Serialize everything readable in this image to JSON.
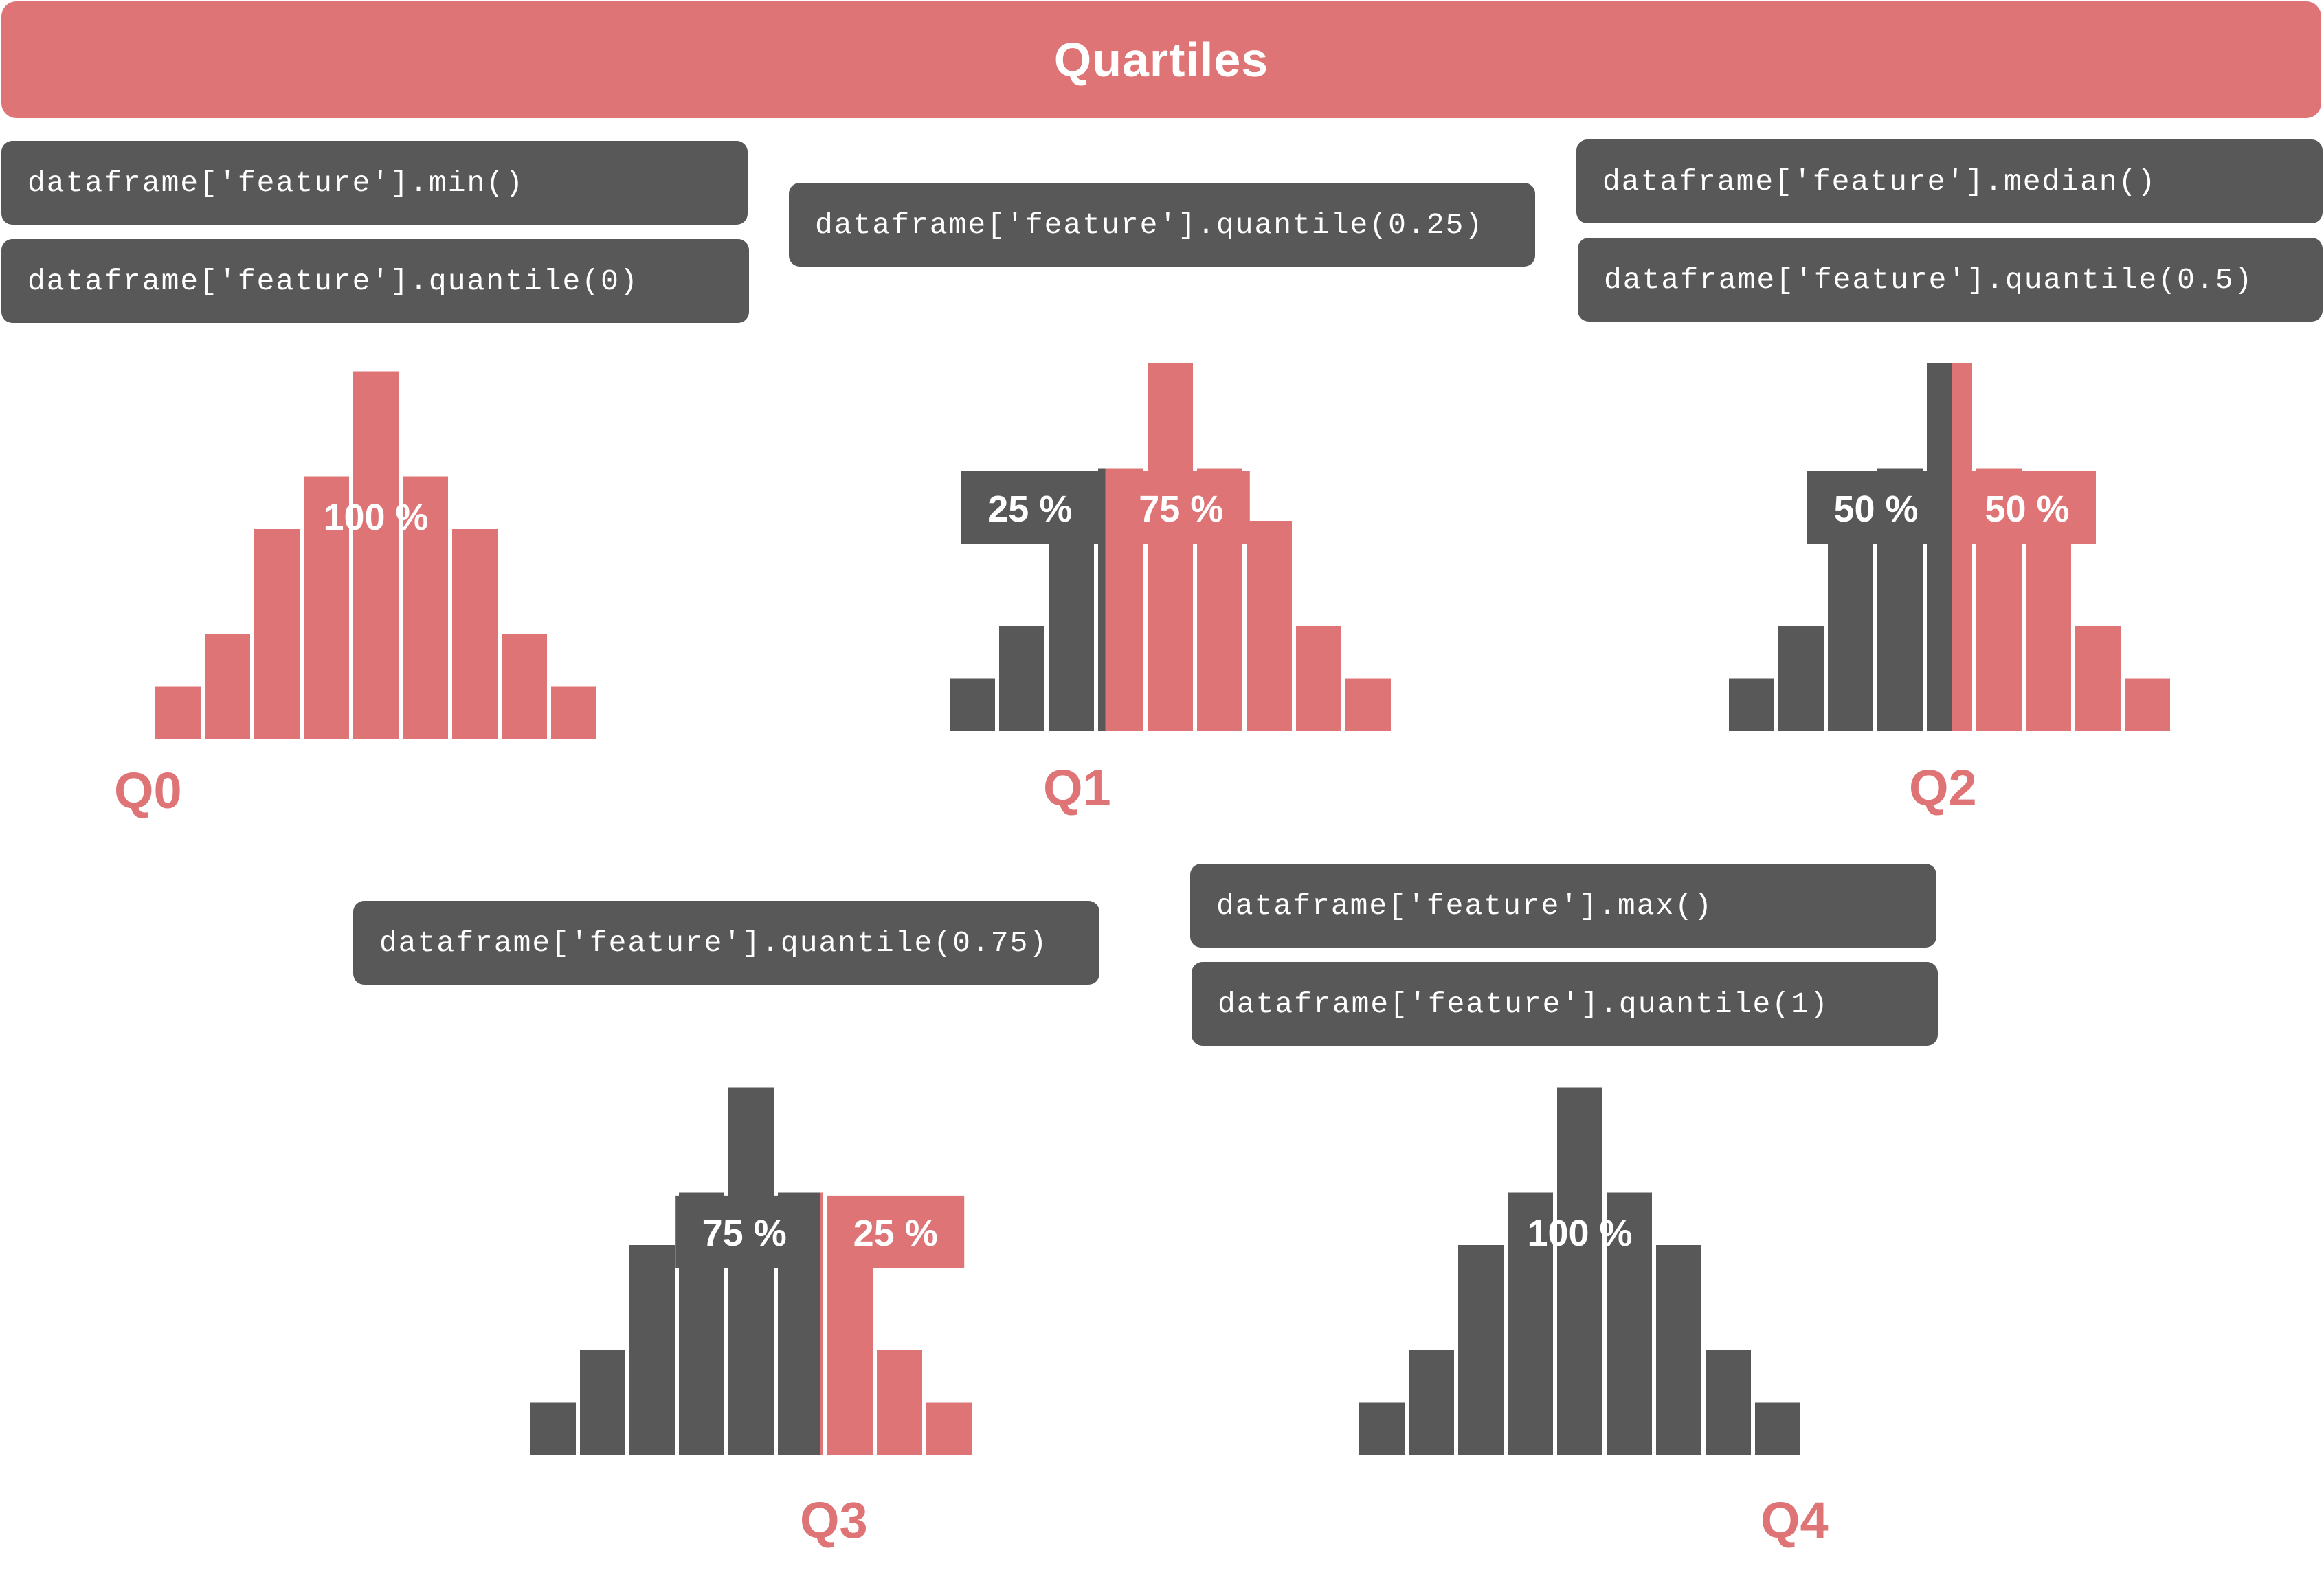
{
  "title": "Quartiles",
  "colors": {
    "accent": "#df7476",
    "dark": "#585858",
    "white": "#ffffff"
  },
  "histogram_counts": [
    1,
    2,
    4,
    5,
    7,
    5,
    4,
    2,
    1
  ],
  "panels": [
    {
      "id": "q0",
      "label": "Q0",
      "code": [
        "dataframe['feature'].min()",
        "dataframe['feature'].quantile(0)"
      ],
      "dark_fraction": 0,
      "percent_labels": [
        {
          "text": "100 %",
          "tone": "accent"
        }
      ]
    },
    {
      "id": "q1",
      "label": "Q1",
      "code": [
        "dataframe['feature'].quantile(0.25)"
      ],
      "dark_fraction": 0.25,
      "percent_labels": [
        {
          "text": "25 %",
          "tone": "dark"
        },
        {
          "text": "75 %",
          "tone": "accent"
        }
      ]
    },
    {
      "id": "q2",
      "label": "Q2",
      "code": [
        "dataframe['feature'].median()",
        "dataframe['feature'].quantile(0.5)"
      ],
      "dark_fraction": 0.5,
      "percent_labels": [
        {
          "text": "50 %",
          "tone": "dark"
        },
        {
          "text": "50 %",
          "tone": "accent"
        }
      ]
    },
    {
      "id": "q3",
      "label": "Q3",
      "code": [
        "dataframe['feature'].quantile(0.75)"
      ],
      "dark_fraction": 0.75,
      "percent_labels": [
        {
          "text": "75 %",
          "tone": "dark"
        },
        {
          "text": "25 %",
          "tone": "accent"
        }
      ]
    },
    {
      "id": "q4",
      "label": "Q4",
      "code": [
        "dataframe['feature'].max()",
        "dataframe['feature'].quantile(1)"
      ],
      "dark_fraction": 1,
      "percent_labels": [
        {
          "text": "100 %",
          "tone": "dark"
        }
      ]
    }
  ]
}
